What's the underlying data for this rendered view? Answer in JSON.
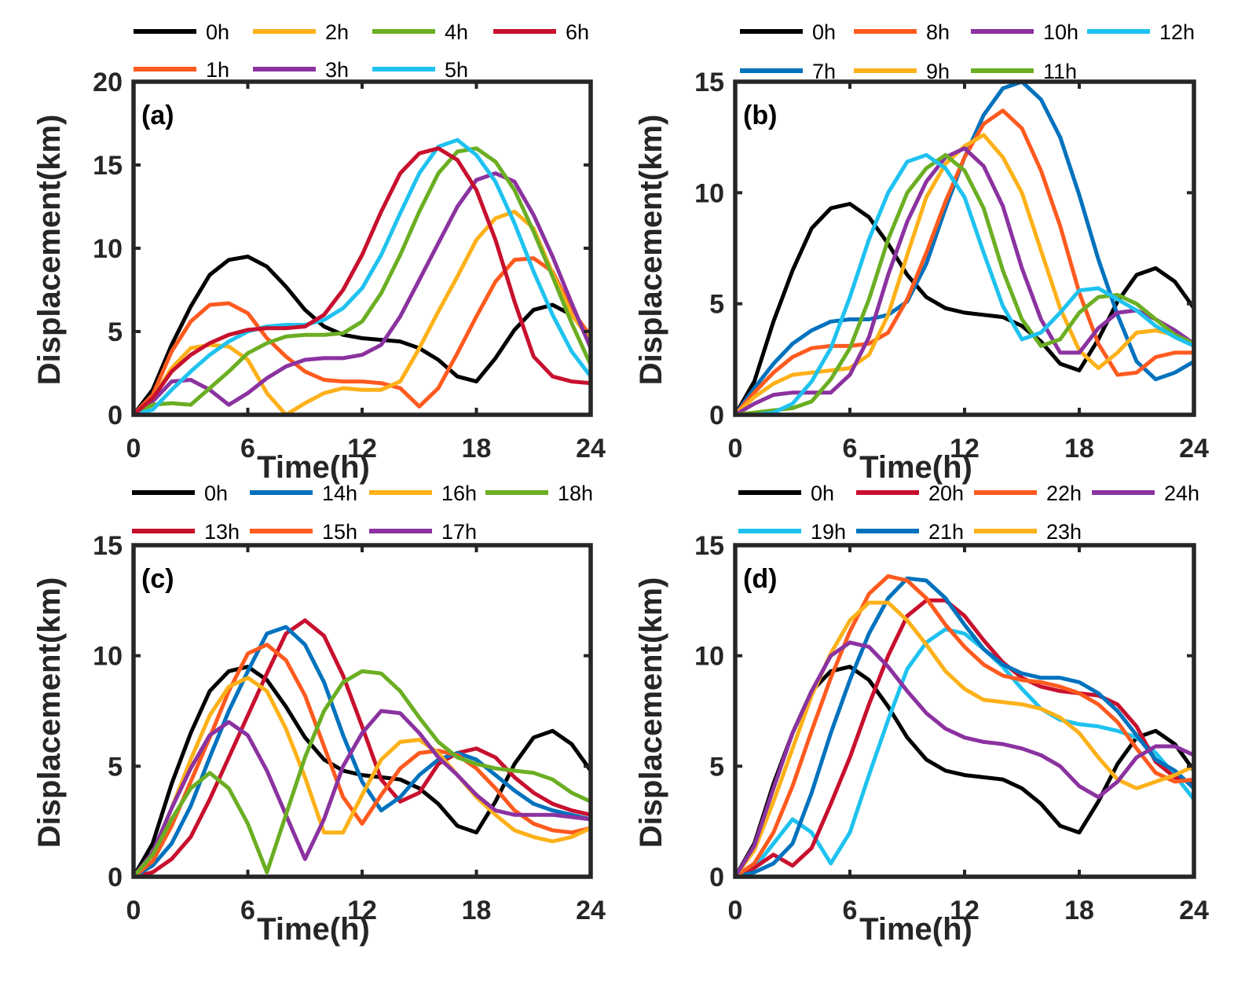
{
  "colors": {
    "0h": "#000000",
    "black": "#000000",
    "blue": "#0072BD",
    "orange": "#FF5A1F",
    "yellow": "#FDB119",
    "purple": "#8B32A0",
    "green": "#6BAE23",
    "cyan": "#1FC2EF",
    "red": "#C8102E"
  },
  "chart_data": [
    {
      "type": "line",
      "tag": "(a)",
      "xlabel": "Time(h)",
      "ylabel": "Displacement(km)",
      "xlim": [
        0,
        24
      ],
      "ylim": [
        0,
        20
      ],
      "xticks": [
        0,
        6,
        12,
        18,
        24
      ],
      "yticks": [
        0,
        5,
        10,
        15,
        20
      ],
      "xtick_labels": [
        "0",
        "6",
        "12",
        "18",
        "24"
      ],
      "ytick_labels": [
        "0",
        "5",
        "10",
        "15",
        "20"
      ],
      "x": [
        0,
        1,
        2,
        3,
        4,
        5,
        6,
        7,
        8,
        9,
        10,
        11,
        12,
        13,
        14,
        15,
        16,
        17,
        18,
        19,
        20,
        21,
        22,
        23,
        24
      ],
      "legend_rows": [
        [
          "0h",
          "2h",
          "4h",
          "6h"
        ],
        [
          "1h",
          "3h",
          "5h"
        ]
      ],
      "series": [
        {
          "name": "0h",
          "color": "black",
          "values": [
            0,
            1.5,
            4.2,
            6.5,
            8.4,
            9.3,
            9.5,
            8.9,
            7.7,
            6.3,
            5.3,
            4.8,
            4.6,
            4.5,
            4.4,
            4.0,
            3.3,
            2.3,
            2.0,
            3.4,
            5.1,
            6.3,
            6.6,
            6.0,
            4.8
          ]
        },
        {
          "name": "1h",
          "color": "orange",
          "values": [
            0,
            1.2,
            3.8,
            5.6,
            6.6,
            6.7,
            6.1,
            4.6,
            3.5,
            2.6,
            2.1,
            2.0,
            2.0,
            1.9,
            1.6,
            0.5,
            1.6,
            3.7,
            5.9,
            8.0,
            9.3,
            9.4,
            8.6,
            6.3,
            4.7
          ]
        },
        {
          "name": "2h",
          "color": "yellow",
          "values": [
            0,
            1.0,
            2.8,
            4.0,
            4.2,
            4.1,
            3.3,
            1.3,
            0,
            0.7,
            1.3,
            1.6,
            1.5,
            1.5,
            2.0,
            4.0,
            6.2,
            8.3,
            10.5,
            11.8,
            12.2,
            11.2,
            8.5,
            6.0,
            4.5
          ]
        },
        {
          "name": "3h",
          "color": "purple",
          "values": [
            0,
            0.8,
            2.0,
            2.1,
            1.5,
            0.6,
            1.3,
            2.2,
            2.9,
            3.3,
            3.4,
            3.4,
            3.6,
            4.2,
            5.9,
            8.1,
            10.3,
            12.5,
            14.1,
            14.5,
            14.0,
            12.0,
            9.5,
            6.7,
            4.0
          ]
        },
        {
          "name": "4h",
          "color": "green",
          "values": [
            0,
            0.6,
            0.7,
            0.6,
            1.6,
            2.6,
            3.7,
            4.3,
            4.7,
            4.8,
            4.8,
            4.9,
            5.6,
            7.3,
            9.6,
            12.2,
            14.5,
            15.8,
            16.0,
            15.2,
            13.5,
            11.0,
            8.3,
            5.5,
            3.0
          ]
        },
        {
          "name": "5h",
          "color": "cyan",
          "values": [
            0,
            0.3,
            1.5,
            2.6,
            3.6,
            4.4,
            5.0,
            5.3,
            5.4,
            5.4,
            5.7,
            6.4,
            7.6,
            9.6,
            12.1,
            14.5,
            16.1,
            16.5,
            15.6,
            14.0,
            11.5,
            8.6,
            6.0,
            3.8,
            2.3
          ]
        },
        {
          "name": "6h",
          "color": "red",
          "values": [
            0,
            1.0,
            2.6,
            3.6,
            4.3,
            4.8,
            5.1,
            5.2,
            5.2,
            5.3,
            6.0,
            7.5,
            9.6,
            12.2,
            14.5,
            15.7,
            16.0,
            15.3,
            13.5,
            10.5,
            6.8,
            3.5,
            2.3,
            2.0,
            1.9
          ]
        }
      ]
    },
    {
      "type": "line",
      "tag": "(b)",
      "xlabel": "Time(h)",
      "ylabel": "Displacement(km)",
      "xlim": [
        0,
        24
      ],
      "ylim": [
        0,
        15
      ],
      "xticks": [
        0,
        6,
        12,
        18,
        24
      ],
      "yticks": [
        0,
        5,
        10,
        15
      ],
      "xtick_labels": [
        "0",
        "6",
        "12",
        "18",
        "24"
      ],
      "ytick_labels": [
        "0",
        "5",
        "10",
        "15"
      ],
      "x": [
        0,
        1,
        2,
        3,
        4,
        5,
        6,
        7,
        8,
        9,
        10,
        11,
        12,
        13,
        14,
        15,
        16,
        17,
        18,
        19,
        20,
        21,
        22,
        23,
        24
      ],
      "legend_rows": [
        [
          "0h",
          "8h",
          "10h",
          "12h"
        ],
        [
          "7h",
          "9h",
          "11h"
        ]
      ],
      "series": [
        {
          "name": "0h",
          "color": "black",
          "values": [
            0,
            1.5,
            4.2,
            6.5,
            8.4,
            9.3,
            9.5,
            8.9,
            7.7,
            6.3,
            5.3,
            4.8,
            4.6,
            4.5,
            4.4,
            4.0,
            3.3,
            2.3,
            2.0,
            3.4,
            5.1,
            6.3,
            6.6,
            6.0,
            4.8
          ]
        },
        {
          "name": "7h",
          "color": "blue",
          "values": [
            0,
            1.2,
            2.3,
            3.2,
            3.8,
            4.2,
            4.3,
            4.3,
            4.5,
            5.1,
            6.8,
            9.3,
            11.6,
            13.5,
            14.7,
            15.0,
            14.2,
            12.5,
            9.9,
            7.0,
            4.5,
            2.4,
            1.6,
            1.9,
            2.4
          ]
        },
        {
          "name": "8h",
          "color": "orange",
          "values": [
            0,
            1.0,
            1.9,
            2.6,
            3.0,
            3.1,
            3.1,
            3.2,
            3.7,
            5.2,
            7.3,
            9.6,
            11.6,
            13.1,
            13.7,
            12.9,
            11.0,
            8.5,
            5.5,
            3.2,
            1.8,
            1.9,
            2.6,
            2.8,
            2.8
          ]
        },
        {
          "name": "9h",
          "color": "yellow",
          "values": [
            0,
            0.8,
            1.4,
            1.8,
            1.9,
            2.0,
            2.1,
            2.7,
            4.5,
            7.2,
            9.8,
            11.3,
            12.1,
            12.6,
            11.6,
            10.0,
            7.4,
            4.8,
            2.9,
            2.1,
            2.8,
            3.7,
            3.8,
            3.6,
            3.2
          ]
        },
        {
          "name": "10h",
          "color": "purple",
          "values": [
            0,
            0.5,
            0.9,
            1.0,
            1.0,
            1.0,
            1.8,
            3.5,
            6.3,
            8.7,
            10.5,
            11.6,
            12.0,
            11.2,
            9.4,
            6.6,
            4.3,
            2.8,
            2.8,
            3.9,
            4.6,
            4.7,
            4.3,
            3.8,
            3.2
          ]
        },
        {
          "name": "11h",
          "color": "green",
          "values": [
            0,
            0.1,
            0.2,
            0.3,
            0.6,
            1.6,
            3.0,
            5.2,
            7.9,
            10.0,
            11.1,
            11.7,
            11.0,
            9.3,
            6.5,
            4.3,
            3.1,
            3.4,
            4.6,
            5.3,
            5.4,
            5.0,
            4.3,
            3.6,
            3.2
          ]
        },
        {
          "name": "12h",
          "color": "cyan",
          "values": [
            0,
            0,
            0.1,
            0.5,
            1.5,
            3.0,
            5.3,
            7.9,
            10.0,
            11.4,
            11.7,
            11.1,
            9.8,
            7.3,
            4.9,
            3.4,
            3.7,
            4.6,
            5.6,
            5.7,
            5.2,
            4.7,
            4.0,
            3.5,
            3.1
          ]
        }
      ]
    },
    {
      "type": "line",
      "tag": "(c)",
      "xlabel": "Time(h)",
      "ylabel": "Displacement(km)",
      "xlim": [
        0,
        24
      ],
      "ylim": [
        0,
        15
      ],
      "xticks": [
        0,
        6,
        12,
        18,
        24
      ],
      "yticks": [
        0,
        5,
        10,
        15
      ],
      "xtick_labels": [
        "0",
        "6",
        "12",
        "18",
        "24"
      ],
      "ytick_labels": [
        "0",
        "5",
        "10",
        "15"
      ],
      "x": [
        0,
        1,
        2,
        3,
        4,
        5,
        6,
        7,
        8,
        9,
        10,
        11,
        12,
        13,
        14,
        15,
        16,
        17,
        18,
        19,
        20,
        21,
        22,
        23,
        24
      ],
      "legend_rows": [
        [
          "0h",
          "14h",
          "16h",
          "18h"
        ],
        [
          "13h",
          "15h",
          "17h"
        ]
      ],
      "series": [
        {
          "name": "0h",
          "color": "black",
          "values": [
            0,
            1.5,
            4.2,
            6.5,
            8.4,
            9.3,
            9.5,
            8.9,
            7.7,
            6.3,
            5.3,
            4.8,
            4.6,
            4.5,
            4.4,
            4.0,
            3.3,
            2.3,
            2.0,
            3.4,
            5.1,
            6.3,
            6.6,
            6.0,
            4.8
          ]
        },
        {
          "name": "13h",
          "color": "red",
          "values": [
            0,
            0.2,
            0.8,
            1.8,
            3.5,
            5.4,
            7.3,
            9.2,
            11.0,
            11.6,
            10.9,
            9.1,
            6.8,
            4.4,
            3.4,
            3.8,
            5.1,
            5.6,
            5.8,
            5.4,
            4.5,
            3.8,
            3.3,
            3.0,
            2.8
          ]
        },
        {
          "name": "14h",
          "color": "blue",
          "values": [
            0,
            0.5,
            1.5,
            3.2,
            5.4,
            7.5,
            9.3,
            11.0,
            11.3,
            10.5,
            8.8,
            6.4,
            4.3,
            3.0,
            3.6,
            4.6,
            5.3,
            5.6,
            5.3,
            4.6,
            3.9,
            3.3,
            3.0,
            2.8,
            2.6
          ]
        },
        {
          "name": "15h",
          "color": "orange",
          "values": [
            0,
            0.7,
            2.3,
            4.3,
            6.3,
            8.4,
            10.1,
            10.5,
            9.8,
            8.2,
            5.9,
            3.6,
            2.4,
            3.7,
            4.9,
            5.6,
            5.7,
            5.5,
            4.9,
            4.0,
            3.0,
            2.4,
            2.1,
            2.0,
            2.2
          ]
        },
        {
          "name": "16h",
          "color": "yellow",
          "values": [
            0,
            1.0,
            3.1,
            5.3,
            7.3,
            8.6,
            9.0,
            8.4,
            6.7,
            4.5,
            2.0,
            2.0,
            3.7,
            5.3,
            6.1,
            6.2,
            5.6,
            4.6,
            3.6,
            2.8,
            2.1,
            1.8,
            1.6,
            1.8,
            2.2
          ]
        },
        {
          "name": "17h",
          "color": "purple",
          "values": [
            0,
            1.1,
            3.1,
            4.9,
            6.4,
            7.0,
            6.4,
            4.8,
            2.8,
            0.8,
            2.6,
            5.0,
            6.5,
            7.5,
            7.4,
            6.5,
            5.4,
            4.6,
            3.7,
            3.0,
            2.8,
            2.8,
            2.8,
            2.7,
            2.6
          ]
        },
        {
          "name": "18h",
          "color": "green",
          "values": [
            0,
            1.0,
            2.6,
            4.0,
            4.7,
            4.0,
            2.4,
            0.2,
            2.8,
            5.4,
            7.5,
            8.8,
            9.3,
            9.2,
            8.4,
            7.2,
            6.1,
            5.4,
            5.1,
            4.9,
            4.8,
            4.7,
            4.4,
            3.8,
            3.4
          ]
        }
      ]
    },
    {
      "type": "line",
      "tag": "(d)",
      "xlabel": "Time(h)",
      "ylabel": "Displacement(km)",
      "xlim": [
        0,
        24
      ],
      "ylim": [
        0,
        15
      ],
      "xticks": [
        0,
        6,
        12,
        18,
        24
      ],
      "yticks": [
        0,
        5,
        10,
        15
      ],
      "xtick_labels": [
        "0",
        "6",
        "12",
        "18",
        "24"
      ],
      "ytick_labels": [
        "0",
        "5",
        "10",
        "15"
      ],
      "x": [
        0,
        1,
        2,
        3,
        4,
        5,
        6,
        7,
        8,
        9,
        10,
        11,
        12,
        13,
        14,
        15,
        16,
        17,
        18,
        19,
        20,
        21,
        22,
        23,
        24
      ],
      "legend_rows": [
        [
          "0h",
          "20h",
          "22h",
          "24h"
        ],
        [
          "19h",
          "21h",
          "23h"
        ]
      ],
      "series": [
        {
          "name": "0h",
          "color": "black",
          "values": [
            0,
            1.5,
            4.2,
            6.5,
            8.4,
            9.3,
            9.5,
            8.9,
            7.7,
            6.3,
            5.3,
            4.8,
            4.6,
            4.5,
            4.4,
            4.0,
            3.3,
            2.3,
            2.0,
            3.4,
            5.1,
            6.3,
            6.6,
            6.0,
            4.8
          ]
        },
        {
          "name": "19h",
          "color": "cyan",
          "values": [
            0,
            0.4,
            1.5,
            2.6,
            2.0,
            0.6,
            2.0,
            4.6,
            7.1,
            9.4,
            10.6,
            11.2,
            11.0,
            10.3,
            9.5,
            8.5,
            7.6,
            7.1,
            6.9,
            6.8,
            6.6,
            6.3,
            5.6,
            4.6,
            3.5
          ]
        },
        {
          "name": "20h",
          "color": "red",
          "values": [
            0,
            0.4,
            1.0,
            0.5,
            1.3,
            3.3,
            5.4,
            7.8,
            10.0,
            11.8,
            12.5,
            12.5,
            11.8,
            10.7,
            9.7,
            9.0,
            8.6,
            8.4,
            8.3,
            8.2,
            7.8,
            6.8,
            5.2,
            4.5,
            4.2
          ]
        },
        {
          "name": "21h",
          "color": "blue",
          "values": [
            0,
            0.2,
            0.6,
            1.5,
            3.8,
            6.5,
            8.9,
            11.0,
            12.6,
            13.5,
            13.4,
            12.6,
            11.4,
            10.3,
            9.6,
            9.2,
            9.0,
            9.0,
            8.8,
            8.3,
            7.5,
            6.4,
            5.3,
            4.8,
            4.0
          ]
        },
        {
          "name": "22h",
          "color": "orange",
          "values": [
            0,
            0.6,
            2.0,
            4.1,
            6.6,
            9.0,
            11.1,
            12.8,
            13.6,
            13.4,
            12.6,
            11.4,
            10.4,
            9.6,
            9.1,
            8.9,
            8.8,
            8.6,
            8.3,
            7.8,
            7.0,
            5.8,
            4.7,
            4.3,
            4.4
          ]
        },
        {
          "name": "23h",
          "color": "yellow",
          "values": [
            0,
            1.2,
            3.4,
            5.8,
            8.2,
            10.1,
            11.6,
            12.4,
            12.4,
            11.6,
            10.5,
            9.3,
            8.5,
            8.0,
            7.9,
            7.8,
            7.6,
            7.2,
            6.5,
            5.4,
            4.4,
            4.0,
            4.3,
            4.6,
            5.0
          ]
        },
        {
          "name": "24h",
          "color": "purple",
          "values": [
            0,
            1.4,
            4.0,
            6.5,
            8.4,
            10.0,
            10.6,
            10.4,
            9.5,
            8.4,
            7.4,
            6.7,
            6.3,
            6.1,
            6.0,
            5.8,
            5.5,
            5.0,
            4.1,
            3.6,
            4.3,
            5.4,
            5.9,
            5.9,
            5.5
          ]
        }
      ]
    }
  ]
}
